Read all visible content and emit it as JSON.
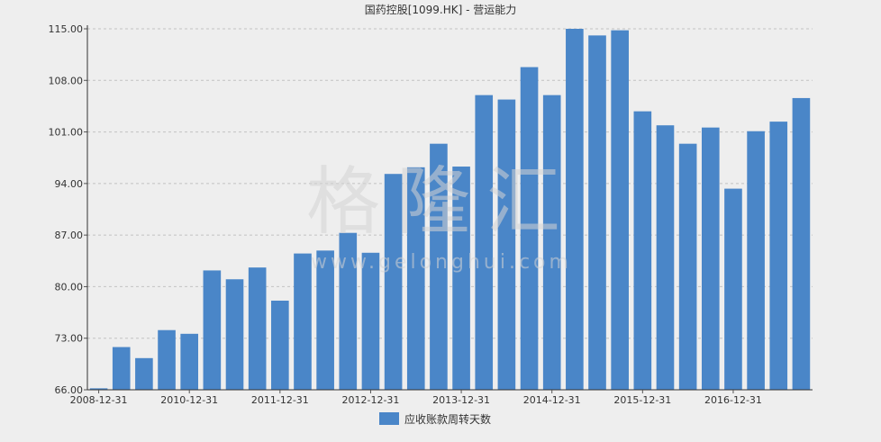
{
  "chart_data": {
    "type": "bar",
    "title": "国药控股[1099.HK] - 营运能力",
    "xlabel": "",
    "ylabel": "",
    "ylim": [
      66,
      115
    ],
    "yticks": [
      "115.00",
      "108.00",
      "101.00",
      "94.00",
      "87.00",
      "80.00",
      "73.00",
      "66.00"
    ],
    "xtick_labels": [
      "2008-12-31",
      "2010-12-31",
      "2011-12-31",
      "2012-12-31",
      "2013-12-31",
      "2014-12-31",
      "2015-12-31",
      "2016-12-31"
    ],
    "xtick_positions": [
      0,
      4,
      8,
      12,
      16,
      20,
      24,
      28
    ],
    "grid": true,
    "legend_position": "bottom",
    "series": [
      {
        "name": "应收账款周转天数",
        "color": "#4a86c8",
        "values": [
          66.2,
          71.8,
          70.3,
          74.1,
          73.6,
          82.2,
          81.0,
          82.6,
          78.1,
          84.5,
          84.9,
          87.3,
          84.6,
          95.3,
          96.2,
          99.4,
          96.3,
          106.0,
          105.4,
          109.8,
          106.0,
          115.0,
          114.1,
          114.8,
          103.8,
          101.9,
          99.4,
          101.6,
          93.3,
          101.1,
          102.4,
          105.6
        ]
      }
    ]
  },
  "watermark": {
    "text": "格隆汇",
    "url": "www.gelonghui.com"
  }
}
